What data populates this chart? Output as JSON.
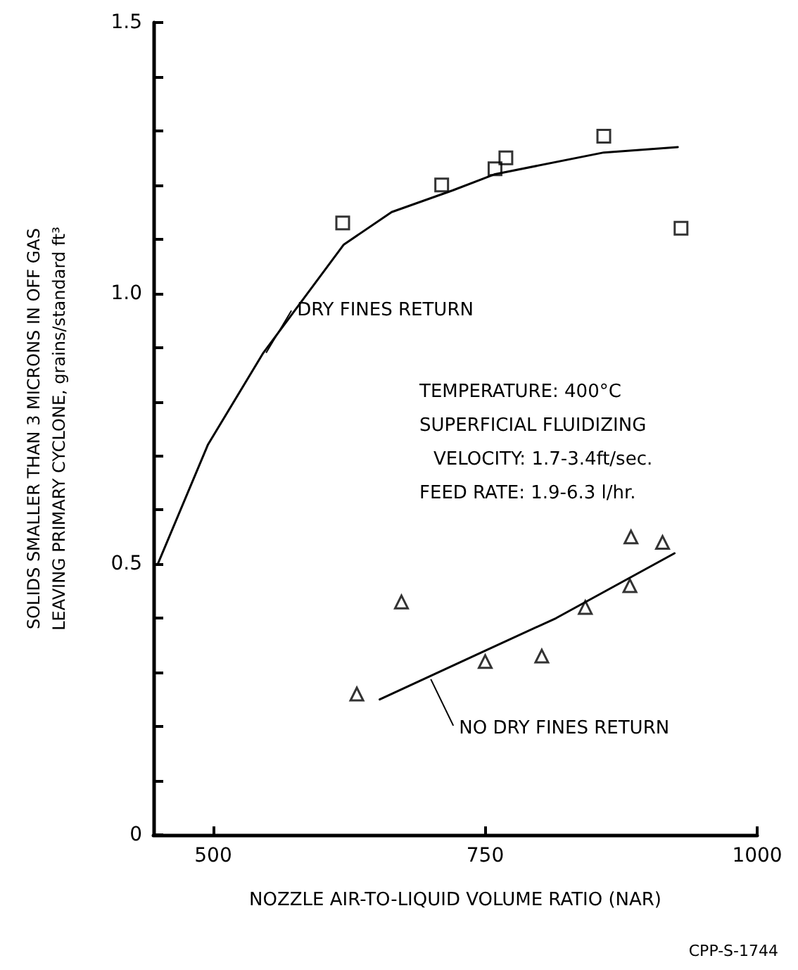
{
  "chart_data": {
    "type": "scatter",
    "xlabel": "NOZZLE AIR-TO-LIQUID VOLUME RATIO (NAR)",
    "ylabel": "SOLIDS SMALLER THAN 3 MICRONS IN OFF GAS\nLEAVING PRIMARY CYCLONE, grains/standard ft³",
    "xlim": [
      445,
      1000
    ],
    "xticks": [
      500,
      750,
      1000
    ],
    "ylim": [
      0,
      1.5
    ],
    "yticks": [
      0,
      {
        "value": 0.1,
        "label": null
      },
      {
        "value": 0.2,
        "label": null
      },
      {
        "value": 0.3,
        "label": null
      },
      {
        "value": 0.4,
        "label": null
      },
      0.5,
      {
        "value": 0.6,
        "label": null
      },
      {
        "value": 0.7,
        "label": null
      },
      {
        "value": 0.8,
        "label": null
      },
      {
        "value": 0.9,
        "label": null
      },
      {
        "value": 1,
        "label": "1.0"
      },
      {
        "value": 1.1,
        "label": null
      },
      {
        "value": 1.2,
        "label": null
      },
      {
        "value": 1.3,
        "label": null
      },
      {
        "value": 1.4,
        "label": null
      },
      1.5
    ],
    "grid": false,
    "series": [
      {
        "marker": "square",
        "color": "#000000",
        "x": [
          619,
          710,
          759,
          769,
          859,
          930
        ],
        "values": [
          1.13,
          1.2,
          1.23,
          1.25,
          1.29,
          1.12
        ]
      },
      {
        "marker": "triangle",
        "color": "#000000",
        "x": [
          632,
          673,
          750,
          802,
          842,
          883,
          884,
          913
        ],
        "values": [
          0.26,
          0.43,
          0.32,
          0.33,
          0.42,
          0.46,
          0.55,
          0.54
        ]
      },
      {
        "type": "line",
        "marker": "none",
        "line_style": "solid",
        "color": "#000000",
        "x": [
          449,
          495,
          546,
          620,
          664,
          720,
          759,
          859,
          927
        ],
        "values": [
          0.5,
          0.72,
          0.89,
          1.09,
          1.15,
          1.19,
          1.22,
          1.26,
          1.27
        ]
      },
      {
        "type": "line",
        "marker": "none",
        "line_style": "solid",
        "color": "#000000",
        "x": [
          653,
          750,
          815,
          924
        ],
        "values": [
          0.25,
          0.34,
          0.4,
          0.52
        ]
      }
    ],
    "annotations": [
      {
        "text": "DRY FINES RETURN",
        "x": 546,
        "y": 0.89
      },
      {
        "text": "NO DRY FINES RETURN",
        "x": 700,
        "y": 0.29
      },
      "TEMPERATURE: 400°C",
      "SUPERFICIAL FLUIDIZING",
      "VELOCITY: 1.7-3.4ft/sec.",
      "FEED RATE: 1.9-6.3 l/hr.",
      "CPP-S-1744"
    ]
  }
}
